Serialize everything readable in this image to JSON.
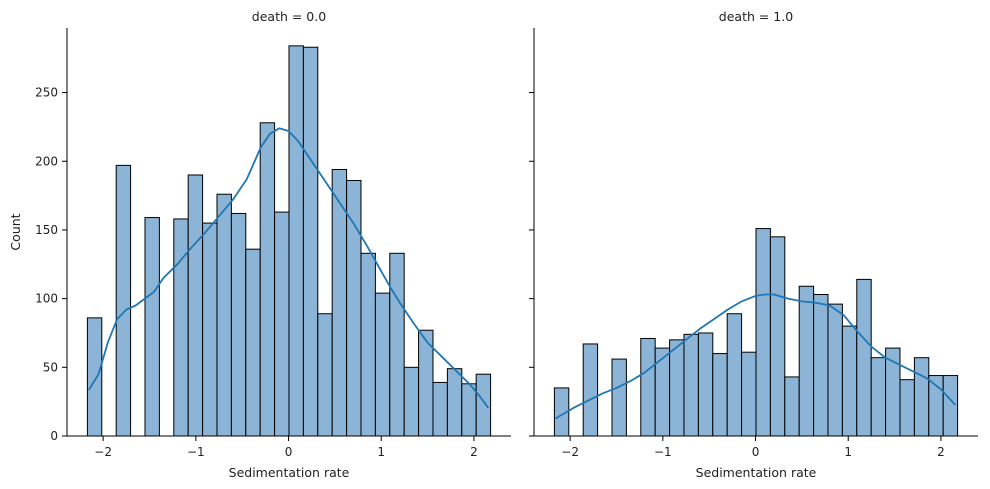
{
  "chart_data": {
    "type": "bar",
    "ylabel": "Count",
    "bin_edges": [
      -2.17,
      -2.0147,
      -1.8593,
      -1.704,
      -1.5486,
      -1.3933,
      -1.2379,
      -1.0826,
      -0.9272,
      -0.7719,
      -0.6165,
      -0.4612,
      -0.3058,
      -0.1505,
      0.0049,
      0.1602,
      0.3156,
      0.4709,
      0.6263,
      0.7816,
      0.937,
      1.0923,
      1.2477,
      1.403,
      1.5584,
      1.7137,
      1.8691,
      2.0244,
      2.18
    ],
    "ylim": [
      0,
      297
    ],
    "yticks": [
      "0",
      "50",
      "100",
      "150",
      "200",
      "250"
    ],
    "xlim": [
      -2.39,
      2.4
    ],
    "xticks": [
      "−2",
      "−1",
      "0",
      "1",
      "2"
    ],
    "bar_color": "#8cb4d6",
    "kde_color": "#1f77b4",
    "panels": [
      {
        "title": "death = 0.0",
        "xlabel": "Sedimentation rate",
        "counts": [
          86,
          0,
          197,
          0,
          159,
          0,
          158,
          190,
          155,
          176,
          162,
          136,
          228,
          163,
          284,
          283,
          89,
          194,
          186,
          133,
          104,
          133,
          50,
          77,
          39,
          49,
          38,
          45
        ],
        "kde": [
          [
            -2.15,
            34
          ],
          [
            -2.05,
            45
          ],
          [
            -1.95,
            68
          ],
          [
            -1.85,
            85
          ],
          [
            -1.75,
            92
          ],
          [
            -1.65,
            95
          ],
          [
            -1.55,
            100
          ],
          [
            -1.45,
            105
          ],
          [
            -1.35,
            115
          ],
          [
            -1.2,
            125
          ],
          [
            -1.05,
            137
          ],
          [
            -0.9,
            148
          ],
          [
            -0.75,
            160
          ],
          [
            -0.6,
            172
          ],
          [
            -0.45,
            187
          ],
          [
            -0.3,
            210
          ],
          [
            -0.2,
            220
          ],
          [
            -0.1,
            224
          ],
          [
            0.0,
            222
          ],
          [
            0.1,
            215
          ],
          [
            0.25,
            200
          ],
          [
            0.4,
            185
          ],
          [
            0.55,
            170
          ],
          [
            0.7,
            155
          ],
          [
            0.85,
            138
          ],
          [
            1.0,
            120
          ],
          [
            1.1,
            108
          ],
          [
            1.2,
            97
          ],
          [
            1.35,
            82
          ],
          [
            1.5,
            68
          ],
          [
            1.65,
            58
          ],
          [
            1.8,
            48
          ],
          [
            1.95,
            38
          ],
          [
            2.05,
            30
          ],
          [
            2.15,
            21
          ]
        ]
      },
      {
        "title": "death = 1.0",
        "xlabel": "Sedimentation rate",
        "counts": [
          35,
          0,
          67,
          0,
          56,
          0,
          71,
          64,
          70,
          74,
          75,
          60,
          89,
          61,
          151,
          145,
          43,
          109,
          103,
          96,
          80,
          114,
          57,
          64,
          41,
          57,
          44,
          44
        ],
        "kde": [
          [
            -2.15,
            13
          ],
          [
            -2.05,
            17
          ],
          [
            -1.95,
            21
          ],
          [
            -1.8,
            26
          ],
          [
            -1.65,
            31
          ],
          [
            -1.5,
            35
          ],
          [
            -1.35,
            40
          ],
          [
            -1.2,
            46
          ],
          [
            -1.05,
            54
          ],
          [
            -0.9,
            62
          ],
          [
            -0.75,
            70
          ],
          [
            -0.6,
            78
          ],
          [
            -0.45,
            85
          ],
          [
            -0.3,
            92
          ],
          [
            -0.15,
            98
          ],
          [
            0.0,
            102
          ],
          [
            0.1,
            103
          ],
          [
            0.2,
            103
          ],
          [
            0.35,
            100
          ],
          [
            0.5,
            98
          ],
          [
            0.65,
            97
          ],
          [
            0.8,
            95
          ],
          [
            0.95,
            88
          ],
          [
            1.1,
            76
          ],
          [
            1.25,
            65
          ],
          [
            1.4,
            57
          ],
          [
            1.55,
            52
          ],
          [
            1.7,
            47
          ],
          [
            1.85,
            42
          ],
          [
            2.0,
            34
          ],
          [
            2.15,
            23
          ]
        ]
      }
    ]
  }
}
